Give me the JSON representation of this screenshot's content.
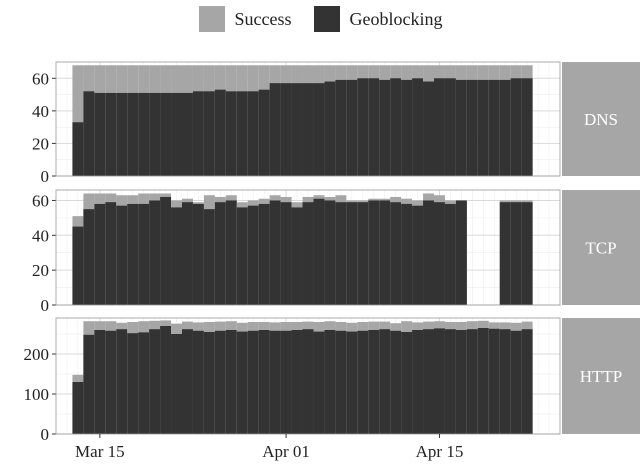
{
  "legend": {
    "items": [
      {
        "label": "Success",
        "color": "#a6a6a6"
      },
      {
        "label": "Geoblocking",
        "color": "#333333"
      }
    ]
  },
  "colors": {
    "success": "#a6a6a6",
    "geoblocking": "#333333",
    "strip": "#a6a6a6",
    "grid_major": "#d9d9d9",
    "grid_minor": "#eeeeee",
    "panel_border": "#999999"
  },
  "chart_data": {
    "type": "bar",
    "stacked": "overlay",
    "x_dates": [
      "2020-03-13",
      "2020-03-14",
      "2020-03-15",
      "2020-03-16",
      "2020-03-17",
      "2020-03-18",
      "2020-03-19",
      "2020-03-20",
      "2020-03-21",
      "2020-03-22",
      "2020-03-23",
      "2020-03-24",
      "2020-03-25",
      "2020-03-26",
      "2020-03-27",
      "2020-03-28",
      "2020-03-29",
      "2020-03-30",
      "2020-03-31",
      "2020-04-01",
      "2020-04-02",
      "2020-04-03",
      "2020-04-04",
      "2020-04-05",
      "2020-04-06",
      "2020-04-07",
      "2020-04-08",
      "2020-04-09",
      "2020-04-10",
      "2020-04-11",
      "2020-04-12",
      "2020-04-13",
      "2020-04-14",
      "2020-04-15",
      "2020-04-16",
      "2020-04-17",
      "2020-04-18",
      "2020-04-19",
      "2020-04-20",
      "2020-04-21",
      "2020-04-22",
      "2020-04-23"
    ],
    "x_ticks": [
      {
        "date": "2020-03-15",
        "label": "Mar 15"
      },
      {
        "date": "2020-04-01",
        "label": "Apr 01"
      },
      {
        "date": "2020-04-15",
        "label": "Apr 15"
      }
    ],
    "xlim": [
      "2020-03-11",
      "2020-04-26"
    ],
    "grid": true,
    "legend_position": "top",
    "facets": [
      {
        "label": "DNS",
        "ylim": [
          0,
          70
        ],
        "yticks": [
          0,
          20,
          40,
          60
        ],
        "series": [
          {
            "name": "Success",
            "values": [
              68,
              68,
              68,
              68,
              68,
              68,
              68,
              68,
              68,
              68,
              68,
              68,
              68,
              68,
              68,
              68,
              68,
              68,
              68,
              68,
              68,
              68,
              68,
              68,
              68,
              68,
              68,
              68,
              68,
              68,
              68,
              68,
              68,
              68,
              68,
              68,
              68,
              68,
              68,
              68,
              68,
              68
            ]
          },
          {
            "name": "Geoblocking",
            "values": [
              33,
              52,
              51,
              51,
              51,
              51,
              51,
              51,
              51,
              51,
              51,
              52,
              52,
              53,
              52,
              52,
              52,
              53,
              57,
              57,
              57,
              57,
              57,
              58,
              59,
              59,
              60,
              60,
              59,
              60,
              59,
              60,
              58,
              60,
              60,
              59,
              59,
              59,
              59,
              59,
              60,
              60
            ]
          }
        ]
      },
      {
        "label": "TCP",
        "ylim": [
          0,
          66
        ],
        "yticks": [
          0,
          20,
          40,
          60
        ],
        "series": [
          {
            "name": "Success",
            "values": [
              51,
              64,
              64,
              64,
              63,
              63,
              64,
              64,
              64,
              60,
              61,
              59,
              63,
              62,
              63,
              59,
              60,
              61,
              63,
              62,
              59,
              62,
              63,
              62,
              63,
              60,
              60,
              61,
              61,
              62,
              61,
              60,
              64,
              63,
              60,
              60,
              null,
              null,
              null,
              60,
              60,
              60
            ]
          },
          {
            "name": "Geoblocking",
            "values": [
              45,
              55,
              58,
              59,
              57,
              58,
              58,
              60,
              62,
              56,
              59,
              58,
              55,
              59,
              60,
              56,
              57,
              58,
              60,
              59,
              56,
              59,
              61,
              60,
              59,
              59,
              59,
              60,
              60,
              59,
              58,
              57,
              60,
              59,
              58,
              60,
              null,
              null,
              null,
              59,
              59,
              59
            ]
          }
        ]
      },
      {
        "label": "HTTP",
        "ylim": [
          0,
          290
        ],
        "yticks": [
          0,
          100,
          200
        ],
        "series": [
          {
            "name": "Success",
            "values": [
              148,
              282,
              282,
              282,
              278,
              280,
              282,
              283,
              284,
              276,
              281,
              279,
              280,
              281,
              282,
              278,
              280,
              280,
              279,
              280,
              280,
              281,
              280,
              282,
              280,
              278,
              280,
              281,
              281,
              277,
              282,
              279,
              281,
              282,
              280,
              280,
              282,
              283,
              279,
              279,
              278,
              281
            ]
          },
          {
            "name": "Geoblocking",
            "values": [
              130,
              248,
              260,
              258,
              262,
              252,
              254,
              262,
              270,
              250,
              262,
              258,
              255,
              258,
              260,
              256,
              258,
              260,
              258,
              258,
              260,
              262,
              256,
              260,
              258,
              256,
              258,
              260,
              262,
              258,
              255,
              260,
              262,
              264,
              262,
              260,
              262,
              265,
              263,
              262,
              258,
              262
            ]
          }
        ]
      }
    ]
  }
}
